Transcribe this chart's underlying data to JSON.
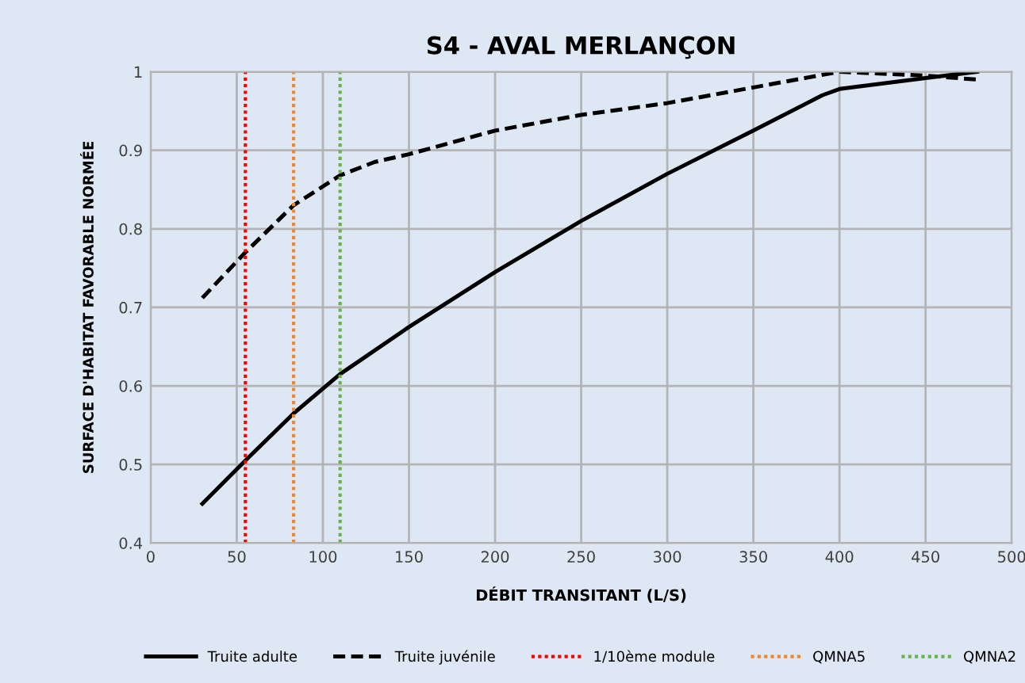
{
  "chart_data": {
    "type": "line",
    "title": "S4 - AVAL MERLANÇON",
    "xlabel": "DÉBIT TRANSITANT (L/S)",
    "ylabel": "SURFACE D'HABITAT FAVORABLE NORMÉE",
    "series": [
      {
        "name": "Truite adulte",
        "color": "#000000",
        "line_style": "solid",
        "x": [
          30,
          55,
          83,
          110,
          150,
          200,
          250,
          300,
          350,
          390,
          400,
          450,
          480
        ],
        "values": [
          0.45,
          0.505,
          0.565,
          0.615,
          0.675,
          0.745,
          0.81,
          0.87,
          0.925,
          0.97,
          0.978,
          0.992,
          1.0
        ]
      },
      {
        "name": "Truite juvénile",
        "color": "#000000",
        "line_style": "dashed",
        "x": [
          30,
          55,
          83,
          110,
          130,
          150,
          200,
          250,
          300,
          350,
          400,
          450,
          480
        ],
        "values": [
          0.712,
          0.77,
          0.83,
          0.868,
          0.885,
          0.895,
          0.925,
          0.945,
          0.96,
          0.98,
          1.0,
          0.995,
          0.99
        ]
      }
    ],
    "ref_lines": [
      {
        "axis": "x",
        "value": 55,
        "label": "1/10ème module",
        "color": "#ff0000",
        "line_style": "dotted"
      },
      {
        "axis": "x",
        "value": 83,
        "label": "QMNA5",
        "color": "#f4862a",
        "line_style": "dotted"
      },
      {
        "axis": "x",
        "value": 110,
        "label": "QMNA2",
        "color": "#6ab04c",
        "line_style": "dotted"
      }
    ],
    "xlim": [
      0,
      500
    ],
    "xticks": [
      0,
      50,
      100,
      150,
      200,
      250,
      300,
      350,
      400,
      450,
      500
    ],
    "ylim": [
      0.4,
      1.0
    ],
    "yticks": [
      0.4,
      0.5,
      0.6,
      0.7,
      0.8,
      0.9,
      1
    ],
    "grid": true,
    "legend": "bottom",
    "marker": "none"
  }
}
